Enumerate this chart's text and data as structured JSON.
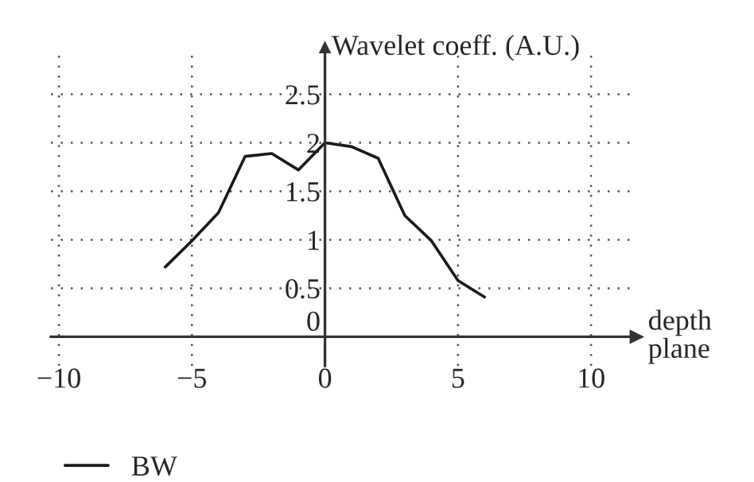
{
  "chart_data": {
    "type": "line",
    "xlabel": "depth\nplane",
    "ylabel": "Wavelet coeff. (A.U.)",
    "x": [
      -6,
      -5,
      -4,
      -3,
      -2,
      -1,
      0,
      1,
      2,
      3,
      4,
      5,
      6
    ],
    "series": [
      {
        "name": "BW",
        "color": "#1a1a1a",
        "values": [
          0.72,
          0.99,
          1.28,
          1.86,
          1.89,
          1.72,
          2.0,
          1.96,
          1.84,
          1.25,
          0.99,
          0.58,
          0.41
        ]
      }
    ],
    "xlim": [
      -10.3,
      11.7
    ],
    "ylim": [
      -0.3,
      2.98
    ],
    "xticks": [
      {
        "value": -10,
        "label": "−10"
      },
      {
        "value": -5,
        "label": "−5"
      },
      0,
      5,
      10
    ],
    "yticks": [
      0,
      0.5,
      1,
      1.5,
      2,
      2.5
    ],
    "grid": true,
    "legend": "bottom left",
    "marker": "none",
    "line_style": "solid"
  }
}
